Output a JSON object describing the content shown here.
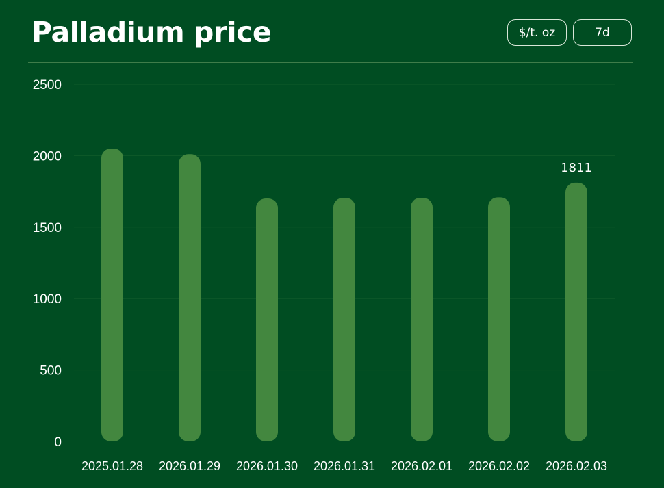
{
  "header": {
    "title": "Palladium price",
    "unit_button": "$/t. oz",
    "range_button": "7d"
  },
  "colors": {
    "background": "#004d22",
    "bar": "#43873f",
    "gridline": "#0f5a2a",
    "divider": "#3f7d4a"
  },
  "chart_data": {
    "type": "bar",
    "categories": [
      "2025.01.28",
      "2026.01.29",
      "2026.01.30",
      "2026.01.31",
      "2026.02.01",
      "2026.02.02",
      "2026.02.03"
    ],
    "values": [
      2050,
      2010,
      1700,
      1705,
      1705,
      1708,
      1811
    ],
    "data_labels": [
      "",
      "",
      "",
      "",
      "",
      "",
      "1811"
    ],
    "ylim": [
      0,
      2500
    ],
    "yticks": [
      0,
      500,
      1000,
      1500,
      2000,
      2500
    ],
    "title": "",
    "xlabel": "",
    "ylabel": "",
    "grid": true,
    "legend": "none"
  }
}
